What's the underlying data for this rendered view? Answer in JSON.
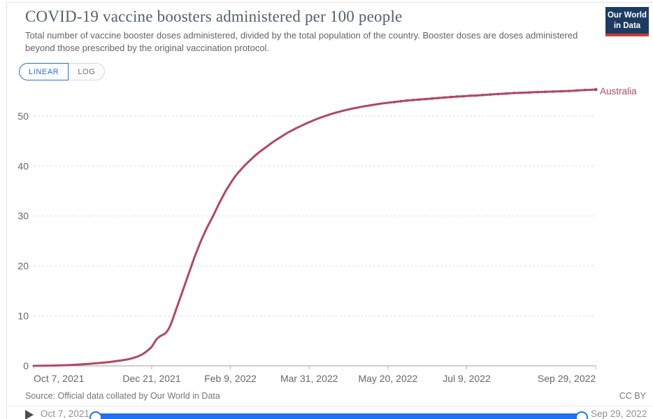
{
  "colors": {
    "accent_blue": "#2a6edf",
    "slider_blue": "#1f72f3",
    "series_red": "#b1495f",
    "logo_navy": "#1c3b60",
    "logo_red": "#cf3b30"
  },
  "header": {
    "title": "COVID-19 vaccine boosters administered per 100 people",
    "subtitle": "Total number of vaccine booster doses administered, divided by the total population of the country. Booster doses are doses administered beyond those prescribed by the original vaccination protocol.",
    "logo_line1": "Our World",
    "logo_line2": "in Data"
  },
  "controls": {
    "scale_buttons": [
      {
        "label": "LINEAR",
        "active": true
      },
      {
        "label": "LOG",
        "active": false
      }
    ]
  },
  "chart_data": {
    "type": "line",
    "title": "COVID-19 vaccine boosters administered per 100 people",
    "xlabel": "",
    "ylabel": "",
    "grid": "horizontal-dashed",
    "legend": "end-of-line-label",
    "y_axis": {
      "ticks": [
        0,
        10,
        20,
        30,
        40,
        50
      ],
      "range": [
        0,
        57
      ]
    },
    "x_axis": {
      "unit": "days since Oct 7, 2021",
      "range_days": [
        0,
        357
      ],
      "ticks": [
        {
          "day": 0,
          "label": "Oct 7, 2021"
        },
        {
          "day": 75,
          "label": "Dec 21, 2021"
        },
        {
          "day": 125,
          "label": "Feb 9, 2022"
        },
        {
          "day": 175,
          "label": "Mar 31, 2022"
        },
        {
          "day": 225,
          "label": "May 20, 2022"
        },
        {
          "day": 275,
          "label": "Jul 9, 2022"
        },
        {
          "day": 357,
          "label": "Sep 29, 2022"
        }
      ]
    },
    "series": [
      {
        "name": "Australia",
        "color": "#b1495f",
        "points_format": "[day_offset_from_Oct_7_2021, boosters_per_100]",
        "points": [
          [
            0,
            0
          ],
          [
            4,
            0.01
          ],
          [
            8,
            0.03
          ],
          [
            12,
            0.05
          ],
          [
            16,
            0.08
          ],
          [
            20,
            0.12
          ],
          [
            24,
            0.18
          ],
          [
            28,
            0.25
          ],
          [
            32,
            0.33
          ],
          [
            36,
            0.42
          ],
          [
            40,
            0.52
          ],
          [
            44,
            0.63
          ],
          [
            48,
            0.76
          ],
          [
            52,
            0.92
          ],
          [
            56,
            1.1
          ],
          [
            60,
            1.3
          ],
          [
            63,
            1.55
          ],
          [
            66,
            1.85
          ],
          [
            69,
            2.3
          ],
          [
            71,
            2.7
          ],
          [
            73,
            3.2
          ],
          [
            75,
            3.8
          ],
          [
            76,
            4.3
          ],
          [
            77,
            4.8
          ],
          [
            78,
            5.3
          ],
          [
            79,
            5.6
          ],
          [
            80,
            5.85
          ],
          [
            81,
            6.05
          ],
          [
            82,
            6.2
          ],
          [
            83,
            6.35
          ],
          [
            84,
            6.6
          ],
          [
            85,
            7.0
          ],
          [
            86,
            7.5
          ],
          [
            87,
            8.2
          ],
          [
            88,
            9.0
          ],
          [
            89,
            9.9
          ],
          [
            90,
            10.8
          ],
          [
            91,
            11.7
          ],
          [
            92,
            12.6
          ],
          [
            93,
            13.5
          ],
          [
            94,
            14.4
          ],
          [
            95,
            15.3
          ],
          [
            96,
            16.2
          ],
          [
            97,
            17.1
          ],
          [
            98,
            18.0
          ],
          [
            99,
            18.9
          ],
          [
            100,
            19.8
          ],
          [
            101,
            20.7
          ],
          [
            102,
            21.6
          ],
          [
            103,
            22.4
          ],
          [
            104,
            23.2
          ],
          [
            105,
            24.0
          ],
          [
            106,
            24.8
          ],
          [
            107,
            25.5
          ],
          [
            108,
            26.2
          ],
          [
            109,
            26.9
          ],
          [
            110,
            27.6
          ],
          [
            112,
            28.8
          ],
          [
            114,
            30.0
          ],
          [
            116,
            31.3
          ],
          [
            118,
            32.6
          ],
          [
            120,
            33.8
          ],
          [
            122,
            35.0
          ],
          [
            124,
            36.0
          ],
          [
            126,
            37.0
          ],
          [
            128,
            37.9
          ],
          [
            130,
            38.7
          ],
          [
            132,
            39.4
          ],
          [
            134,
            40.1
          ],
          [
            136,
            40.7
          ],
          [
            138,
            41.3
          ],
          [
            140,
            41.9
          ],
          [
            143,
            42.7
          ],
          [
            146,
            43.4
          ],
          [
            149,
            44.1
          ],
          [
            152,
            44.8
          ],
          [
            155,
            45.4
          ],
          [
            158,
            46.0
          ],
          [
            161,
            46.6
          ],
          [
            164,
            47.1
          ],
          [
            167,
            47.6
          ],
          [
            170,
            48.05
          ],
          [
            173,
            48.5
          ],
          [
            176,
            48.9
          ],
          [
            179,
            49.3
          ],
          [
            182,
            49.65
          ],
          [
            185,
            50.0
          ],
          [
            188,
            50.3
          ],
          [
            191,
            50.6
          ],
          [
            194,
            50.85
          ],
          [
            197,
            51.1
          ],
          [
            201,
            51.4
          ],
          [
            205,
            51.65
          ],
          [
            209,
            51.9
          ],
          [
            213,
            52.1
          ],
          [
            217,
            52.3
          ],
          [
            221,
            52.5
          ],
          [
            225,
            52.65
          ],
          [
            229,
            52.8
          ],
          [
            233,
            52.95
          ],
          [
            237,
            53.1
          ],
          [
            241,
            53.2
          ],
          [
            245,
            53.3
          ],
          [
            249,
            53.4
          ],
          [
            253,
            53.5
          ],
          [
            257,
            53.6
          ],
          [
            261,
            53.7
          ],
          [
            265,
            53.8
          ],
          [
            269,
            53.9
          ],
          [
            273,
            53.95
          ],
          [
            277,
            54.05
          ],
          [
            281,
            54.1
          ],
          [
            285,
            54.2
          ],
          [
            290,
            54.3
          ],
          [
            295,
            54.4
          ],
          [
            300,
            54.5
          ],
          [
            305,
            54.6
          ],
          [
            310,
            54.65
          ],
          [
            315,
            54.72
          ],
          [
            320,
            54.8
          ],
          [
            325,
            54.85
          ],
          [
            330,
            54.9
          ],
          [
            335,
            54.95
          ],
          [
            340,
            55.0
          ],
          [
            345,
            55.1
          ],
          [
            350,
            55.2
          ],
          [
            357,
            55.3
          ]
        ]
      }
    ]
  },
  "footer": {
    "source": "Source: Official data collated by Our World in Data",
    "license": "CC BY"
  },
  "timeline": {
    "start_label": "Oct 7, 2021",
    "end_label": "Sep 29, 2022"
  }
}
